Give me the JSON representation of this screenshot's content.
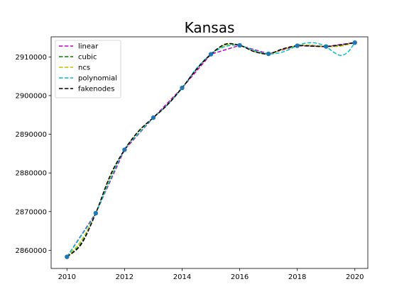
{
  "chart_data": {
    "type": "line",
    "title": "Kansas",
    "xlabel": "",
    "ylabel": "",
    "xlim": [
      2009.45,
      2020.45
    ],
    "ylim": [
      2855300,
      2915200
    ],
    "x_ticks": [
      2010,
      2012,
      2014,
      2016,
      2018,
      2020
    ],
    "x_tick_labels": [
      "2010",
      "2012",
      "2014",
      "2016",
      "2018",
      "2020"
    ],
    "y_ticks": [
      2860000,
      2870000,
      2880000,
      2890000,
      2900000,
      2910000
    ],
    "y_tick_labels": [
      "2860000",
      "2870000",
      "2880000",
      "2890000",
      "2900000",
      "2910000"
    ],
    "grid": false,
    "legend_position": "top-left",
    "data_points": {
      "x": [
        2010,
        2011,
        2012,
        2013,
        2014,
        2015,
        2016,
        2017,
        2018,
        2019,
        2020
      ],
      "y": [
        2858300,
        2869600,
        2886000,
        2894300,
        2902000,
        2910700,
        2913000,
        2910800,
        2912900,
        2912700,
        2913700
      ],
      "color": "#1f77b4"
    },
    "series": [
      {
        "name": "linear",
        "color": "#bf00bf",
        "x": [
          2010,
          2011,
          2012,
          2013,
          2014,
          2015,
          2016,
          2017,
          2018,
          2019,
          2020
        ],
        "y": [
          2858300,
          2869600,
          2886000,
          2894300,
          2902000,
          2910700,
          2913000,
          2910800,
          2912900,
          2912700,
          2913700
        ]
      },
      {
        "name": "cubic",
        "color": "#008000",
        "x": [
          2010,
          2010.5,
          2011,
          2011.5,
          2012,
          2012.5,
          2013,
          2013.5,
          2014,
          2014.5,
          2015,
          2015.5,
          2016,
          2016.5,
          2017,
          2017.5,
          2018,
          2018.5,
          2019,
          2019.5,
          2020
        ],
        "y": [
          2858300,
          2861900,
          2869600,
          2879000,
          2886000,
          2890900,
          2894300,
          2897700,
          2902000,
          2906900,
          2910700,
          2913100,
          2913000,
          2911400,
          2910800,
          2912000,
          2912900,
          2913000,
          2912700,
          2912900,
          2913700
        ]
      },
      {
        "name": "ncs",
        "color": "#bfbf00",
        "x": [
          2010,
          2010.5,
          2011,
          2011.5,
          2012,
          2012.5,
          2013,
          2013.5,
          2014,
          2014.5,
          2015,
          2015.5,
          2016,
          2016.5,
          2017,
          2017.5,
          2018,
          2018.5,
          2019,
          2019.5,
          2020
        ],
        "y": [
          2858300,
          2862500,
          2869600,
          2878700,
          2886000,
          2890800,
          2894300,
          2897700,
          2902000,
          2906900,
          2910700,
          2913100,
          2913000,
          2911400,
          2910800,
          2912000,
          2912900,
          2913000,
          2912700,
          2912800,
          2913700
        ]
      },
      {
        "name": "polynomial",
        "color": "#00bfbf",
        "x": [
          2010,
          2010.5,
          2011,
          2011.5,
          2012,
          2012.5,
          2013,
          2013.5,
          2014,
          2014.5,
          2015,
          2015.5,
          2016,
          2016.5,
          2017,
          2017.5,
          2018,
          2018.25,
          2018.5,
          2018.75,
          2019,
          2019.25,
          2019.5,
          2019.75,
          2020
        ],
        "y": [
          2858300,
          2863800,
          2869600,
          2878200,
          2886000,
          2890300,
          2894300,
          2897700,
          2902000,
          2907000,
          2910700,
          2912700,
          2913000,
          2911700,
          2910800,
          2911300,
          2912900,
          2913500,
          2913700,
          2913400,
          2912700,
          2911300,
          2910400,
          2911200,
          2913700
        ]
      },
      {
        "name": "fakenodes",
        "color": "#000000",
        "x": [
          2010,
          2010.5,
          2011,
          2011.5,
          2012,
          2012.5,
          2013,
          2013.5,
          2014,
          2014.5,
          2015,
          2015.5,
          2016,
          2016.5,
          2017,
          2017.5,
          2018,
          2018.5,
          2019,
          2019.5,
          2020
        ],
        "y": [
          2858300,
          2861600,
          2869600,
          2879300,
          2886000,
          2890900,
          2894300,
          2897700,
          2902000,
          2906800,
          2910700,
          2913300,
          2913000,
          2911400,
          2910800,
          2912100,
          2912900,
          2912800,
          2912700,
          2913100,
          2913700
        ]
      }
    ]
  }
}
